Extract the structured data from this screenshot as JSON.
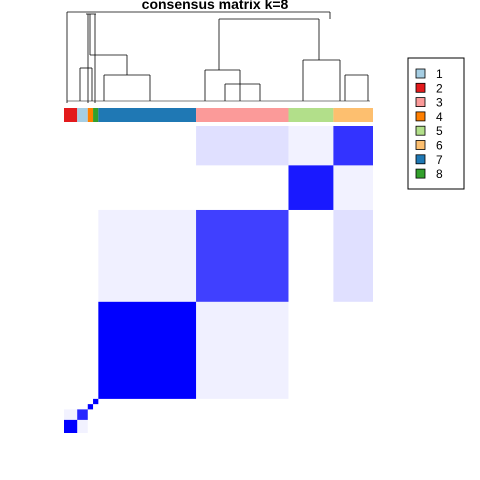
{
  "chart_data": {
    "type": "heatmap",
    "title": "consensus matrix k=8",
    "value_range": [
      0,
      1
    ],
    "colors": {
      "low": "#ffffff",
      "high": "#0000ff",
      "dendrogram": "#000000"
    },
    "group_order": [
      "2",
      "1",
      "4",
      "8",
      "7",
      "3",
      "5",
      "6"
    ],
    "group_sizes": [
      5,
      4,
      2,
      2,
      37,
      35,
      17,
      15
    ],
    "class_colors": {
      "1": "#a6cee3",
      "2": "#e31a1c",
      "3": "#fb9a99",
      "4": "#ff7f00",
      "5": "#b2df8a",
      "6": "#fdbf6f",
      "7": "#1f78b4",
      "8": "#33a02c"
    },
    "legend": {
      "position": "right",
      "items": [
        {
          "label": "1",
          "color": "#a6cee3"
        },
        {
          "label": "2",
          "color": "#e31a1c"
        },
        {
          "label": "3",
          "color": "#fb9a99"
        },
        {
          "label": "4",
          "color": "#ff7f00"
        },
        {
          "label": "5",
          "color": "#b2df8a"
        },
        {
          "label": "6",
          "color": "#fdbf6f"
        },
        {
          "label": "7",
          "color": "#1f78b4"
        },
        {
          "label": "8",
          "color": "#33a02c"
        }
      ]
    },
    "blocks": [
      {
        "class": "6",
        "consensus": 0.8
      },
      {
        "class": "5",
        "consensus": 0.9
      },
      {
        "class": "3",
        "consensus": 0.75
      },
      {
        "class": "7",
        "consensus": 1.0
      },
      {
        "class": "8",
        "consensus": 1.0
      },
      {
        "class": "4",
        "consensus": 1.0
      },
      {
        "class": "1",
        "consensus": 0.85
      },
      {
        "class": "2",
        "consensus": 1.0
      }
    ]
  }
}
